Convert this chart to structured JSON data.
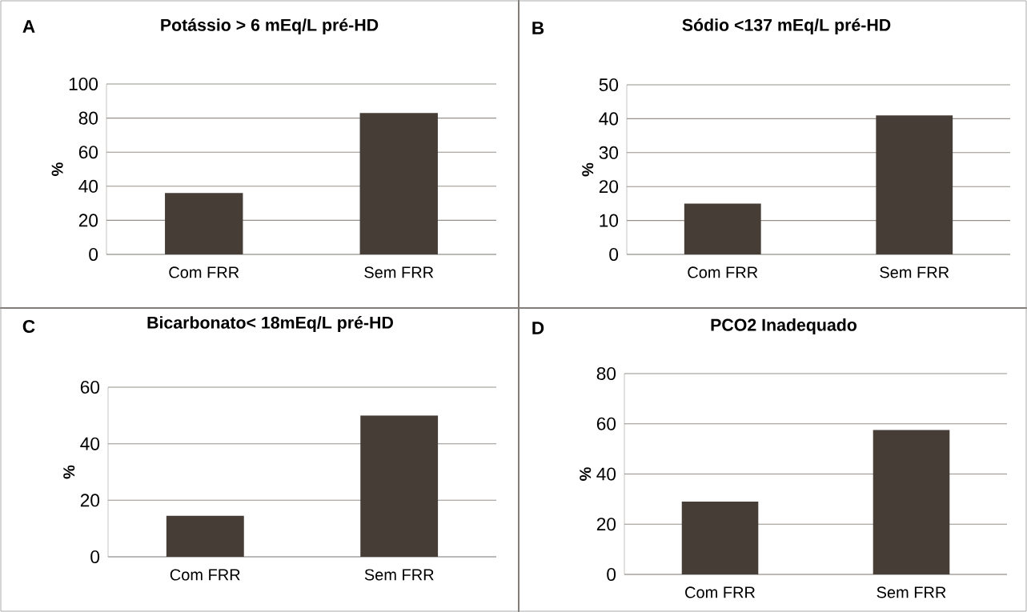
{
  "chart_data": [
    {
      "type": "bar",
      "title": "Potássio > 6 mEq/L pré-HD",
      "annotations": [
        "A"
      ],
      "ylabel": "%",
      "categories": [
        "Com FRR",
        "Sem FRR"
      ],
      "values": [
        36,
        83
      ],
      "color": "#463d37",
      "ylim": [
        0,
        100
      ],
      "yticks": [
        0,
        20,
        40,
        60,
        80,
        100
      ],
      "grid": "y"
    },
    {
      "type": "bar",
      "title": "Sódio <137 mEq/L pré-HD",
      "annotations": [
        "B"
      ],
      "ylabel": "%",
      "categories": [
        "Com FRR",
        "Sem FRR"
      ],
      "values": [
        15,
        41
      ],
      "color": "#463d37",
      "ylim": [
        0,
        50
      ],
      "yticks": [
        0,
        10,
        20,
        30,
        40,
        50
      ],
      "grid": "y"
    },
    {
      "type": "bar",
      "title": "Bicarbonato< 18mEq/L pré-HD",
      "annotations": [
        "C"
      ],
      "ylabel": "%",
      "categories": [
        "Com FRR",
        "Sem FRR"
      ],
      "values": [
        14.5,
        50
      ],
      "color": "#463d37",
      "ylim": [
        0,
        60
      ],
      "yticks": [
        0,
        20,
        40,
        60
      ],
      "grid": "y"
    },
    {
      "type": "bar",
      "title": "PCO2 Inadequado",
      "annotations": [
        "D"
      ],
      "ylabel": "%",
      "categories": [
        "Com FRR",
        "Sem FRR"
      ],
      "values": [
        29,
        57.5
      ],
      "color": "#463d37",
      "ylim": [
        0,
        80
      ],
      "yticks": [
        0,
        20,
        40,
        60,
        80
      ],
      "grid": "y"
    }
  ]
}
